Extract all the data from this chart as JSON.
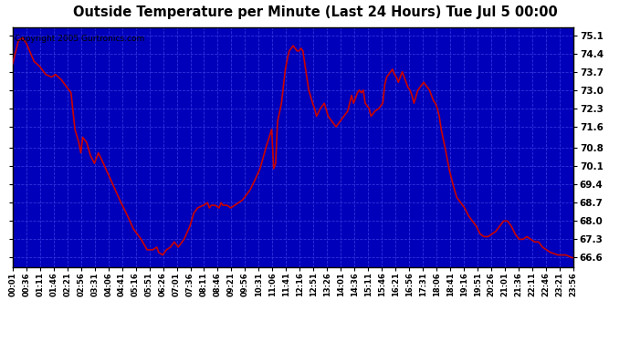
{
  "title": "Outside Temperature per Minute (Last 24 Hours) Tue Jul 5 00:00",
  "copyright": "Copyright 2005 Gurtronics.com",
  "ylabel_right_ticks": [
    66.6,
    67.3,
    68.0,
    68.7,
    69.4,
    70.1,
    70.8,
    71.6,
    72.3,
    73.0,
    73.7,
    74.4,
    75.1
  ],
  "ylim": [
    66.25,
    75.4
  ],
  "line_color": "#cc0000",
  "plot_bg": "#0000bb",
  "x_tick_labels": [
    "00:01",
    "00:36",
    "01:11",
    "01:46",
    "02:21",
    "02:56",
    "03:31",
    "04:06",
    "04:41",
    "05:16",
    "05:51",
    "06:26",
    "07:01",
    "07:36",
    "08:11",
    "08:46",
    "09:21",
    "09:56",
    "10:31",
    "11:06",
    "11:41",
    "12:16",
    "12:51",
    "13:26",
    "14:01",
    "14:36",
    "15:11",
    "15:46",
    "16:21",
    "16:56",
    "17:31",
    "18:06",
    "18:41",
    "19:16",
    "19:51",
    "20:26",
    "21:01",
    "21:36",
    "22:11",
    "22:46",
    "23:21",
    "23:56"
  ],
  "grid_color": "#3333dd",
  "grid_linestyle": "--",
  "grid_linewidth": 0.6,
  "keypoints": [
    [
      0,
      74.0
    ],
    [
      5,
      74.3
    ],
    [
      15,
      74.9
    ],
    [
      25,
      75.0
    ],
    [
      35,
      74.8
    ],
    [
      55,
      74.1
    ],
    [
      70,
      73.9
    ],
    [
      85,
      73.6
    ],
    [
      100,
      73.5
    ],
    [
      110,
      73.6
    ],
    [
      125,
      73.4
    ],
    [
      135,
      73.2
    ],
    [
      150,
      72.9
    ],
    [
      160,
      71.5
    ],
    [
      170,
      71.0
    ],
    [
      175,
      70.6
    ],
    [
      180,
      71.2
    ],
    [
      190,
      71.0
    ],
    [
      200,
      70.5
    ],
    [
      210,
      70.2
    ],
    [
      220,
      70.6
    ],
    [
      230,
      70.3
    ],
    [
      245,
      69.8
    ],
    [
      260,
      69.3
    ],
    [
      275,
      68.8
    ],
    [
      295,
      68.2
    ],
    [
      310,
      67.7
    ],
    [
      330,
      67.3
    ],
    [
      345,
      66.9
    ],
    [
      360,
      66.9
    ],
    [
      370,
      67.0
    ],
    [
      375,
      66.8
    ],
    [
      385,
      66.7
    ],
    [
      395,
      66.9
    ],
    [
      405,
      67.0
    ],
    [
      415,
      67.2
    ],
    [
      425,
      67.0
    ],
    [
      440,
      67.3
    ],
    [
      455,
      67.8
    ],
    [
      465,
      68.3
    ],
    [
      475,
      68.5
    ],
    [
      490,
      68.6
    ],
    [
      500,
      68.7
    ],
    [
      505,
      68.5
    ],
    [
      510,
      68.6
    ],
    [
      520,
      68.6
    ],
    [
      530,
      68.5
    ],
    [
      535,
      68.7
    ],
    [
      540,
      68.6
    ],
    [
      550,
      68.6
    ],
    [
      560,
      68.5
    ],
    [
      570,
      68.6
    ],
    [
      580,
      68.7
    ],
    [
      590,
      68.8
    ],
    [
      600,
      69.0
    ],
    [
      610,
      69.2
    ],
    [
      620,
      69.5
    ],
    [
      635,
      70.0
    ],
    [
      650,
      70.8
    ],
    [
      665,
      71.5
    ],
    [
      670,
      70.0
    ],
    [
      675,
      70.2
    ],
    [
      680,
      71.8
    ],
    [
      690,
      72.5
    ],
    [
      700,
      73.8
    ],
    [
      705,
      74.2
    ],
    [
      710,
      74.5
    ],
    [
      715,
      74.6
    ],
    [
      720,
      74.7
    ],
    [
      725,
      74.6
    ],
    [
      730,
      74.5
    ],
    [
      735,
      74.5
    ],
    [
      740,
      74.6
    ],
    [
      745,
      74.5
    ],
    [
      750,
      74.0
    ],
    [
      755,
      73.5
    ],
    [
      760,
      73.0
    ],
    [
      770,
      72.5
    ],
    [
      775,
      72.3
    ],
    [
      780,
      72.0
    ],
    [
      790,
      72.3
    ],
    [
      800,
      72.5
    ],
    [
      810,
      72.0
    ],
    [
      815,
      71.9
    ],
    [
      820,
      71.8
    ],
    [
      825,
      71.7
    ],
    [
      830,
      71.6
    ],
    [
      840,
      71.8
    ],
    [
      850,
      72.0
    ],
    [
      860,
      72.2
    ],
    [
      865,
      72.5
    ],
    [
      870,
      72.8
    ],
    [
      875,
      72.5
    ],
    [
      880,
      72.7
    ],
    [
      885,
      72.9
    ],
    [
      890,
      73.0
    ],
    [
      895,
      72.9
    ],
    [
      900,
      73.0
    ],
    [
      905,
      72.5
    ],
    [
      915,
      72.3
    ],
    [
      920,
      72.0
    ],
    [
      930,
      72.2
    ],
    [
      940,
      72.3
    ],
    [
      950,
      72.5
    ],
    [
      955,
      73.2
    ],
    [
      960,
      73.5
    ],
    [
      970,
      73.7
    ],
    [
      975,
      73.8
    ],
    [
      980,
      73.6
    ],
    [
      985,
      73.5
    ],
    [
      990,
      73.3
    ],
    [
      995,
      73.5
    ],
    [
      1000,
      73.7
    ],
    [
      1005,
      73.5
    ],
    [
      1010,
      73.3
    ],
    [
      1015,
      73.1
    ],
    [
      1020,
      73.0
    ],
    [
      1025,
      72.8
    ],
    [
      1030,
      72.5
    ],
    [
      1040,
      73.0
    ],
    [
      1050,
      73.2
    ],
    [
      1055,
      73.3
    ],
    [
      1060,
      73.2
    ],
    [
      1065,
      73.1
    ],
    [
      1070,
      73.0
    ],
    [
      1075,
      72.8
    ],
    [
      1080,
      72.6
    ],
    [
      1085,
      72.5
    ],
    [
      1090,
      72.3
    ],
    [
      1095,
      72.0
    ],
    [
      1100,
      71.5
    ],
    [
      1110,
      70.8
    ],
    [
      1120,
      70.0
    ],
    [
      1130,
      69.4
    ],
    [
      1140,
      68.9
    ],
    [
      1150,
      68.7
    ],
    [
      1160,
      68.5
    ],
    [
      1170,
      68.2
    ],
    [
      1180,
      68.0
    ],
    [
      1190,
      67.8
    ],
    [
      1200,
      67.5
    ],
    [
      1210,
      67.4
    ],
    [
      1220,
      67.4
    ],
    [
      1230,
      67.5
    ],
    [
      1240,
      67.6
    ],
    [
      1250,
      67.8
    ],
    [
      1260,
      68.0
    ],
    [
      1270,
      68.0
    ],
    [
      1280,
      67.8
    ],
    [
      1290,
      67.5
    ],
    [
      1300,
      67.3
    ],
    [
      1310,
      67.3
    ],
    [
      1320,
      67.4
    ],
    [
      1330,
      67.3
    ],
    [
      1340,
      67.2
    ],
    [
      1350,
      67.2
    ],
    [
      1360,
      67.0
    ],
    [
      1380,
      66.8
    ],
    [
      1400,
      66.7
    ],
    [
      1420,
      66.7
    ],
    [
      1435,
      66.6
    ],
    [
      1439,
      66.6
    ]
  ]
}
